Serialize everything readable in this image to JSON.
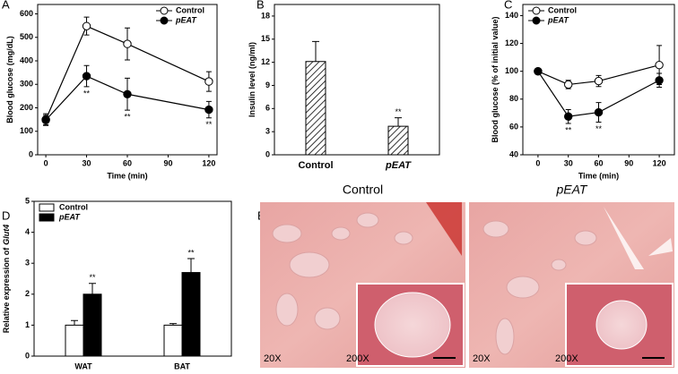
{
  "panel_labels": [
    "A",
    "B",
    "C",
    "D",
    "E"
  ],
  "chart_data": [
    {
      "type": "line",
      "xlabel": "Time (min)",
      "ylabel": [
        "Blood glucose (mg/dL)"
      ],
      "x": [
        0,
        30,
        60,
        120
      ],
      "xlim": [
        -6,
        126
      ],
      "xticks": [
        0,
        30,
        60,
        90,
        120
      ],
      "ylim": [
        0,
        640
      ],
      "yticks": [
        0,
        100,
        200,
        300,
        400,
        500,
        600
      ],
      "legend": "upper right",
      "series": [
        {
          "name": "Control",
          "color": "#ffffff",
          "style": "normal",
          "values": [
            150,
            548,
            472,
            312
          ],
          "errors": [
            25,
            38,
            68,
            42
          ]
        },
        {
          "name": "pEAT",
          "color": "#000000",
          "style": "italic",
          "values": [
            148,
            335,
            258,
            192
          ],
          "errors": [
            20,
            45,
            68,
            35
          ],
          "annotations": [
            null,
            "**",
            "**",
            "**"
          ]
        }
      ]
    },
    {
      "type": "bar",
      "ylabel": [
        "Insulin level (ng/ml)"
      ],
      "categories": [
        "Control",
        "pEAT"
      ],
      "category_styles": [
        "normal",
        "italic"
      ],
      "ylim": [
        0,
        19.5
      ],
      "yticks": [
        0,
        3,
        6,
        9,
        12,
        15,
        18
      ],
      "hatch": true,
      "color": "#ffffff",
      "series": [
        {
          "name": null,
          "color": "#ffffff",
          "values": [
            12.1,
            3.7
          ],
          "errors": [
            2.6,
            1.1
          ],
          "annotations": [
            null,
            "**"
          ]
        }
      ]
    },
    {
      "type": "line",
      "xlabel": "Time (min)",
      "ylabel": [
        "Blood glucose (% of initial value)"
      ],
      "x": [
        0,
        30,
        60,
        120
      ],
      "xlim": [
        -15,
        135
      ],
      "xticks": [
        0,
        30,
        60,
        90,
        120
      ],
      "ylim": [
        40,
        148
      ],
      "yticks": [
        40,
        60,
        80,
        100,
        120,
        140
      ],
      "legend": "upper left",
      "series": [
        {
          "name": "Control",
          "color": "#ffffff",
          "style": "normal",
          "values": [
            100,
            90.5,
            93,
            104.5
          ],
          "errors": [
            0,
            3,
            4,
            14
          ]
        },
        {
          "name": "pEAT",
          "color": "#000000",
          "style": "italic",
          "values": [
            100,
            67.5,
            70.5,
            93.5
          ],
          "errors": [
            0,
            5,
            7,
            5
          ],
          "annotations": [
            null,
            "**",
            "**",
            null
          ]
        }
      ]
    },
    {
      "type": "bar",
      "ylabel": [
        "Relative expression of",
        "Glut4"
      ],
      "categories": [
        "WAT",
        "BAT"
      ],
      "category_styles": [
        "normal",
        "normal"
      ],
      "ylim": [
        0,
        5
      ],
      "yticks": [
        0,
        1,
        2,
        3,
        4,
        5
      ],
      "legend": "upper left",
      "series": [
        {
          "name": "Control",
          "color": "#ffffff",
          "style": "normal",
          "values": [
            1.0,
            1.0
          ],
          "errors": [
            0.15,
            0.05
          ]
        },
        {
          "name": "pEAT",
          "color": "#000000",
          "style": "italic",
          "values": [
            2.0,
            2.7
          ],
          "errors": [
            0.35,
            0.45
          ],
          "annotations": [
            "**",
            "**"
          ]
        }
      ]
    }
  ],
  "histology": [
    {
      "title": "Control",
      "magnification": "20X",
      "inset_magnification": "200X"
    },
    {
      "title": "pEAT",
      "magnification": "20X",
      "inset_magnification": "200X"
    }
  ]
}
